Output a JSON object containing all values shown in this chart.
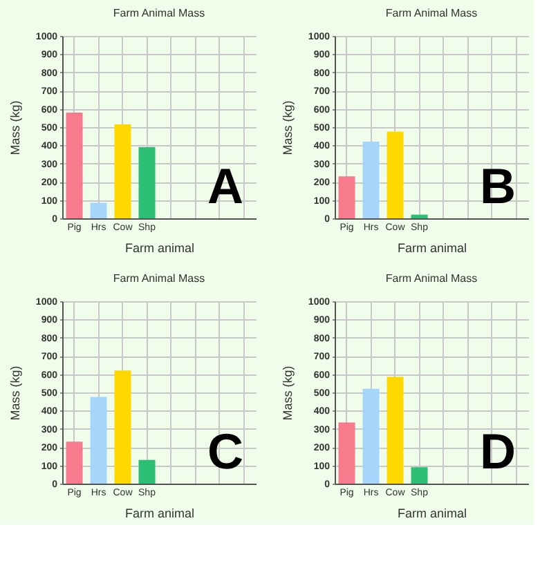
{
  "chart_data": [
    {
      "type": "bar",
      "title": "Farm Animal Mass",
      "xlabel": "Farm animal",
      "ylabel": "Mass (kg)",
      "categories": [
        "Pig",
        "Hrs",
        "Cow",
        "Shp",
        null,
        null,
        null,
        null
      ],
      "values": [
        580,
        85,
        515,
        390,
        null,
        null,
        null,
        null
      ],
      "colors": [
        "#f77b8d",
        "#a6d5fb",
        "#ffd800",
        "#2dbf73",
        null,
        null,
        null,
        null
      ],
      "ylim": [
        0,
        1000
      ],
      "yticks": [
        0,
        100,
        200,
        300,
        400,
        500,
        600,
        700,
        800,
        900,
        1000
      ],
      "grid": true,
      "annotations": [
        "A"
      ]
    },
    {
      "type": "bar",
      "title": "Farm Animal Mass",
      "xlabel": "Farm animal",
      "ylabel": "Mass (kg)",
      "categories": [
        "Pig",
        "Hrs",
        "Cow",
        "Shp",
        null,
        null,
        null,
        null
      ],
      "values": [
        230,
        420,
        475,
        20,
        null,
        null,
        null,
        null
      ],
      "colors": [
        "#f77b8d",
        "#a6d5fb",
        "#ffd800",
        "#2dbf73",
        null,
        null,
        null,
        null
      ],
      "ylim": [
        0,
        1000
      ],
      "yticks": [
        0,
        100,
        200,
        300,
        400,
        500,
        600,
        700,
        800,
        900,
        1000
      ],
      "grid": true,
      "annotations": [
        "B"
      ]
    },
    {
      "type": "bar",
      "title": "Farm Animal Mass",
      "xlabel": "Farm animal",
      "ylabel": "Mass (kg)",
      "categories": [
        "Pig",
        "Hrs",
        "Cow",
        "Shp",
        null,
        null,
        null,
        null
      ],
      "values": [
        230,
        475,
        620,
        130,
        null,
        null,
        null,
        null
      ],
      "colors": [
        "#f77b8d",
        "#a6d5fb",
        "#ffd800",
        "#2dbf73",
        null,
        null,
        null,
        null
      ],
      "ylim": [
        0,
        1000
      ],
      "yticks": [
        0,
        100,
        200,
        300,
        400,
        500,
        600,
        700,
        800,
        900,
        1000
      ],
      "grid": true,
      "annotations": [
        "C"
      ]
    },
    {
      "type": "bar",
      "title": "Farm Animal Mass",
      "xlabel": "Farm animal",
      "ylabel": "Mass (kg)",
      "categories": [
        "Pig",
        "Hrs",
        "Cow",
        "Shp",
        null,
        null,
        null,
        null
      ],
      "values": [
        335,
        520,
        585,
        90,
        null,
        null,
        null,
        null
      ],
      "colors": [
        "#f77b8d",
        "#a6d5fb",
        "#ffd800",
        "#2dbf73",
        null,
        null,
        null,
        null
      ],
      "ylim": [
        0,
        1000
      ],
      "yticks": [
        0,
        100,
        200,
        300,
        400,
        500,
        600,
        700,
        800,
        900,
        1000
      ],
      "grid": true,
      "annotations": [
        "D"
      ]
    }
  ]
}
